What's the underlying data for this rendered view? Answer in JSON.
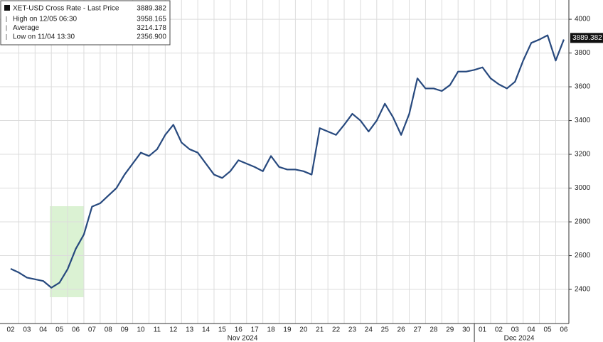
{
  "chart_data": {
    "type": "line",
    "series": [
      {
        "name": "XET-USD Cross Rate - Last Price",
        "color": "#27497e",
        "values": [
          2522,
          2500,
          2470,
          2460,
          2450,
          2410,
          2440,
          2520,
          2640,
          2725,
          2890,
          2910,
          2955,
          3000,
          3080,
          3145,
          3210,
          3190,
          3230,
          3315,
          3375,
          3270,
          3230,
          3210,
          3145,
          3080,
          3060,
          3100,
          3165,
          3145,
          3125,
          3100,
          3190,
          3125,
          3110,
          3110,
          3100,
          3080,
          3355,
          3335,
          3315,
          3375,
          3440,
          3400,
          3335,
          3400,
          3500,
          3420,
          3315,
          3440,
          3650,
          3590,
          3590,
          3575,
          3610,
          3690,
          3690,
          3700,
          3715,
          3650,
          3615,
          3590,
          3630,
          3755,
          3860,
          3880,
          3905,
          3755,
          3880
        ]
      }
    ],
    "categories": [
      "02",
      null,
      "03",
      null,
      "04",
      null,
      "05",
      null,
      "06",
      null,
      "07",
      null,
      "08",
      null,
      "09",
      null,
      "10",
      null,
      "11",
      null,
      "12",
      null,
      "13",
      null,
      "14",
      null,
      "15",
      null,
      "16",
      null,
      "17",
      null,
      "18",
      null,
      "19",
      null,
      "20",
      null,
      "21",
      null,
      "22",
      null,
      "23",
      null,
      "24",
      null,
      "25",
      null,
      "26",
      null,
      "27",
      null,
      "28",
      null,
      "29",
      null,
      "30",
      null,
      "01",
      null,
      "02",
      null,
      "03",
      null,
      "04",
      null,
      "05",
      null,
      "06"
    ],
    "month_labels": [
      "Nov 2024",
      "Dec 2024"
    ],
    "ylim": [
      2198,
      4114
    ],
    "yticks": [
      2400,
      2600,
      2800,
      3000,
      3200,
      3400,
      3600,
      3800,
      4000
    ],
    "grid": true,
    "last_price": 3889.382,
    "legend_rows": [
      {
        "label": "High on 12/05 06:30",
        "value": "3958.165"
      },
      {
        "label": "Average",
        "value": "3214.178"
      },
      {
        "label": "Low on 11/04 13:30",
        "value": "2356.900"
      }
    ]
  }
}
